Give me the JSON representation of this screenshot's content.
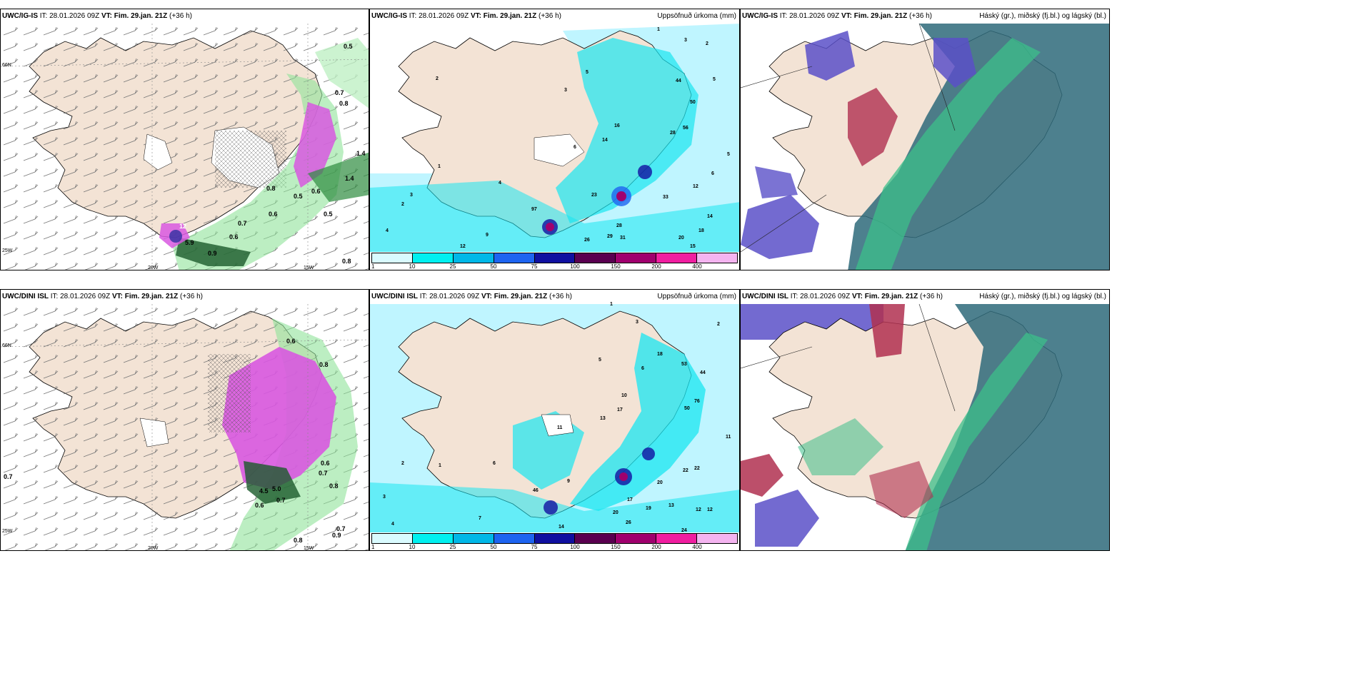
{
  "panels": {
    "p1": {
      "model": "UWC/IG-IS",
      "it_label": "IT:",
      "it": "28.01.2026 09Z",
      "vt_label": "VT:",
      "vt": "Fim. 29.jan. 21Z",
      "lead": "(+36 h)",
      "right": ""
    },
    "p2": {
      "model": "UWC/IG-IS",
      "it_label": "IT:",
      "it": "28.01.2026 09Z",
      "vt_label": "VT:",
      "vt": "Fim. 29.jan. 21Z",
      "lead": "(+36 h)",
      "right": "Uppsöfnuð úrkoma (mm)"
    },
    "p3": {
      "model": "UWC/IG-IS",
      "it_label": "IT:",
      "it": "28.01.2026 09Z",
      "vt_label": "VT:",
      "vt": "Fim. 29.jan. 21Z",
      "lead": "(+36 h)",
      "right": "Háský (gr.), miðský (fj.bl.) og lágský (bl.)"
    },
    "p4": {
      "model": "UWC/DINI ISL",
      "it_label": "IT:",
      "it": "28.01.2026 09Z",
      "vt_label": "VT:",
      "vt": "Fim. 29.jan. 21Z",
      "lead": "(+36 h)",
      "right": ""
    },
    "p5": {
      "model": "UWC/DINI ISL",
      "it_label": "IT:",
      "it": "28.01.2026 09Z",
      "vt_label": "VT:",
      "vt": "Fim. 29.jan. 21Z",
      "lead": "(+36 h)",
      "right": "Uppsöfnuð úrkoma (mm)"
    },
    "p6": {
      "model": "UWC/DINI ISL",
      "it_label": "IT:",
      "it": "28.01.2026 09Z",
      "vt_label": "VT:",
      "vt": "Fim. 29.jan. 21Z",
      "lead": "(+36 h)",
      "right": "Háský (gr.), miðský (fj.bl.) og lágský (bl.)"
    }
  },
  "axis_labels": {
    "lat66": "66N",
    "lon20": "20W",
    "lon15": "15W",
    "lon25": "25W"
  },
  "legend": {
    "colors": [
      "#d9fbff",
      "#00f0f0",
      "#00b8e8",
      "#1e64f0",
      "#1010a0",
      "#5a0050",
      "#a0006e",
      "#f01ea0",
      "#f4b4f0"
    ],
    "ticks": [
      "1",
      "10",
      "25",
      "50",
      "75",
      "100",
      "150",
      "200",
      "400"
    ]
  },
  "colors": {
    "land": "#f3e3d5",
    "sea": "#ffffff",
    "precip_light": "#bff5ff",
    "precip_mid": "#19e6f0",
    "snow_pink": "#d858e0",
    "green": "#2e8b3e",
    "cloud_blue": "#5a50c8",
    "cloud_green": "#3cbf8a",
    "cloud_red": "#b03050",
    "cloud_teal": "#2e6a7a"
  },
  "labels": {
    "p1": [
      "0.5",
      "0.7",
      "0.8",
      "1.4",
      "1.4",
      "0.6",
      "0.5",
      "0.8",
      "0.7",
      "0.6",
      "0.9",
      "0.5",
      "0.6",
      "5.9",
      "12",
      "0.8"
    ],
    "p2": [
      "1",
      "3",
      "2",
      "5",
      "44",
      "50",
      "56",
      "28",
      "12",
      "6",
      "5",
      "14",
      "18",
      "20",
      "15",
      "33",
      "26",
      "28",
      "29",
      "31",
      "23",
      "16",
      "14",
      "97",
      "9",
      "12",
      "3",
      "4",
      "2",
      "1",
      "6",
      "2",
      "3",
      "4",
      "5"
    ],
    "p4": [
      "0.7",
      "0.6",
      "0.8",
      "0.7",
      "0.8",
      "4.5",
      "5.0",
      "0.6",
      "0.7",
      "0.8",
      "0.9",
      "0.7",
      "0.6"
    ],
    "p5": [
      "1",
      "2",
      "3",
      "5",
      "44",
      "50",
      "53",
      "76",
      "18",
      "6",
      "10",
      "17",
      "11",
      "22",
      "22",
      "20",
      "13",
      "12",
      "12",
      "19",
      "17",
      "14",
      "20",
      "26",
      "46",
      "9",
      "7",
      "11",
      "2",
      "4",
      "3",
      "1",
      "6",
      "13",
      "24"
    ]
  }
}
